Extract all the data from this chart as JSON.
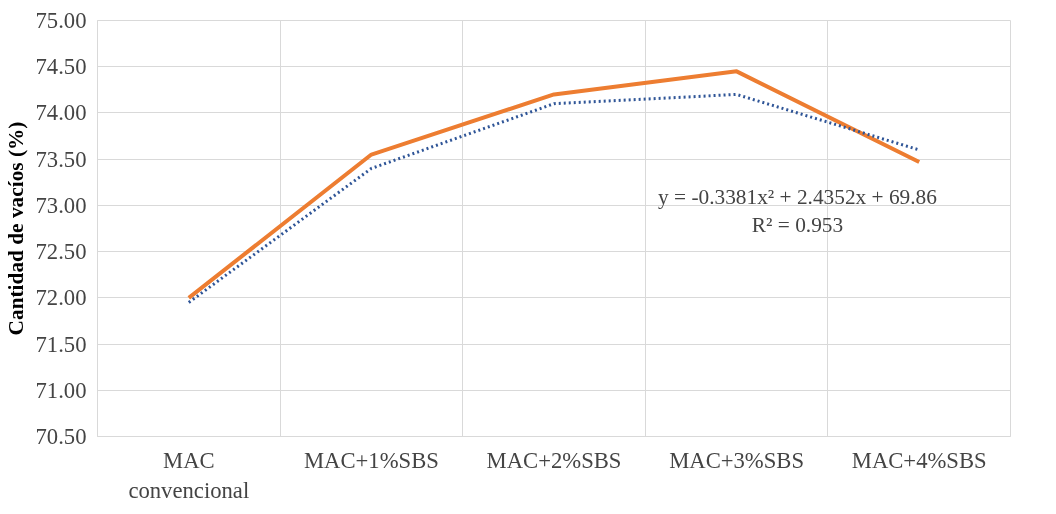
{
  "chart_data": {
    "type": "line",
    "ylabel": "Cantidad de vacíos (%)",
    "categories": [
      "MAC\nconvencional",
      "MAC+1%SBS",
      "MAC+2%SBS",
      "MAC+3%SBS",
      "MAC+4%SBS"
    ],
    "series": [
      {
        "color": "#ed7d31",
        "values": [
          72.0,
          73.55,
          74.2,
          74.45,
          73.47
        ],
        "line_style": "solid"
      },
      {
        "type": "line",
        "color": "#2f5597",
        "values": [
          71.95,
          73.4,
          74.1,
          74.2,
          73.6
        ],
        "line_style": "dotted"
      }
    ],
    "ylim": [
      70.5,
      75.0
    ],
    "yticks": [
      {
        "value": 70.5,
        "label": "70.50"
      },
      {
        "value": 71.0,
        "label": "71.00"
      },
      {
        "value": 71.5,
        "label": "71.50"
      },
      {
        "value": 72.0,
        "label": "72.00"
      },
      {
        "value": 72.5,
        "label": "72.50"
      },
      {
        "value": 73.0,
        "label": "73.00"
      },
      {
        "value": 73.5,
        "label": "73.50"
      },
      {
        "value": 74.0,
        "label": "74.00"
      },
      {
        "value": 74.5,
        "label": "74.50"
      },
      {
        "value": 75.0,
        "label": "75.00"
      }
    ],
    "grid": true,
    "marker": "none",
    "annotations": [
      "y = -0.3381x² + 2.4352x + 69.86",
      "R² = 0.953"
    ]
  }
}
